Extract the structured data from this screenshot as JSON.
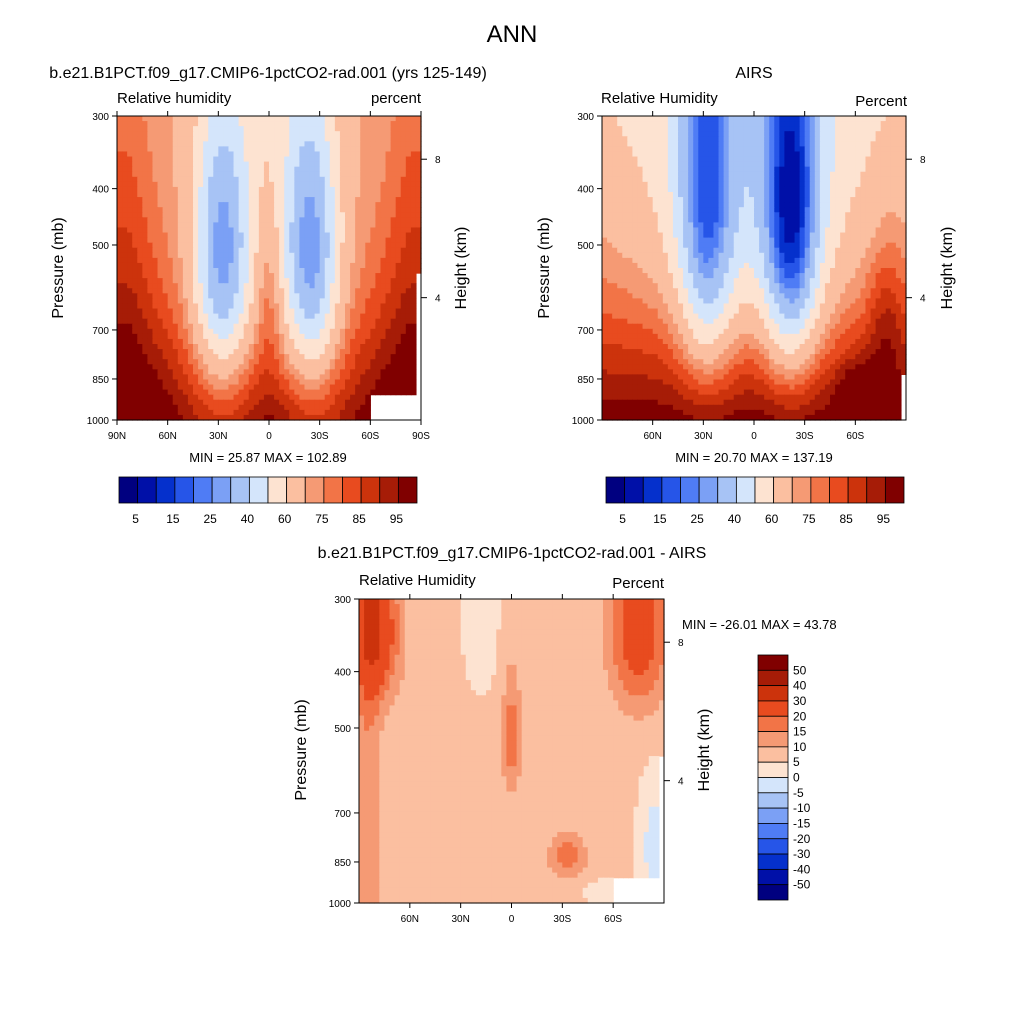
{
  "page_title": "ANN",
  "chart_data": [
    {
      "type": "heatmap",
      "title": "b.e21.B1PCT.f09_g17.CMIP6-1pctCO2-rad.001 (yrs 125-149)",
      "left_label": "Relative humidity",
      "right_label": "percent",
      "ylabel": "Pressure (mb)",
      "y2label": "Height (km)",
      "xticks": [
        "90N",
        "60N",
        "30N",
        "0",
        "30S",
        "60S",
        "90S"
      ],
      "yticks": [
        "300",
        "400",
        "500",
        "700",
        "850",
        "1000"
      ],
      "y2ticks": [
        "8",
        "4"
      ],
      "stats": "MIN =  25.87  MAX = 102.89",
      "ylim": [
        1000,
        300
      ],
      "xlim": [
        90,
        -90
      ],
      "colorbar_labels": [
        "5",
        "15",
        "25",
        "40",
        "60",
        "75",
        "85",
        "95"
      ]
    },
    {
      "type": "heatmap",
      "title": "AIRS",
      "left_label": "Relative Humidity",
      "right_label": "Percent",
      "ylabel": "Pressure (mb)",
      "y2label": "Height (km)",
      "xticks": [
        "60N",
        "30N",
        "0",
        "30S",
        "60S"
      ],
      "yticks": [
        "300",
        "400",
        "500",
        "700",
        "850",
        "1000"
      ],
      "y2ticks": [
        "8",
        "4"
      ],
      "stats": "MIN =  20.70  MAX = 137.19",
      "ylim": [
        1000,
        300
      ],
      "xlim": [
        90,
        -90
      ],
      "colorbar_labels": [
        "5",
        "15",
        "25",
        "40",
        "60",
        "75",
        "85",
        "95"
      ]
    },
    {
      "type": "heatmap",
      "title": "b.e21.B1PCT.f09_g17.CMIP6-1pctCO2-rad.001 - AIRS",
      "left_label": "Relative Humidity",
      "right_label": "Percent",
      "ylabel": "Pressure (mb)",
      "y2label": "Height (km)",
      "xticks": [
        "60N",
        "30N",
        "0",
        "30S",
        "60S"
      ],
      "yticks": [
        "300",
        "400",
        "500",
        "700",
        "850",
        "1000"
      ],
      "y2ticks": [
        "8",
        "4"
      ],
      "stats": "MIN = -26.01  MAX =  43.78",
      "ylim": [
        1000,
        300
      ],
      "xlim": [
        90,
        -90
      ],
      "colorbar_labels": [
        "50",
        "40",
        "30",
        "20",
        "15",
        "10",
        "5",
        "0",
        "-5",
        "-10",
        "-15",
        "-20",
        "-30",
        "-40",
        "-50"
      ]
    }
  ],
  "colors": {
    "rh_scale": [
      "#000080",
      "#0010a8",
      "#0530cc",
      "#2655e8",
      "#4f7cf5",
      "#7ba0f5",
      "#a7c3f5",
      "#d4e5fb",
      "#fde3d1",
      "#fbbfa0",
      "#f59a74",
      "#f27447",
      "#e84b1f",
      "#cc330c",
      "#a61c07",
      "#800000"
    ],
    "diff_scale": [
      "#000080",
      "#0010a8",
      "#0530cc",
      "#2655e8",
      "#4f7cf5",
      "#7ba0f5",
      "#a7c3f5",
      "#d4e5fb",
      "#fde3d1",
      "#fbbfa0",
      "#f59a74",
      "#f27447",
      "#e84b1f",
      "#cc330c",
      "#a61c07",
      "#800000"
    ]
  }
}
